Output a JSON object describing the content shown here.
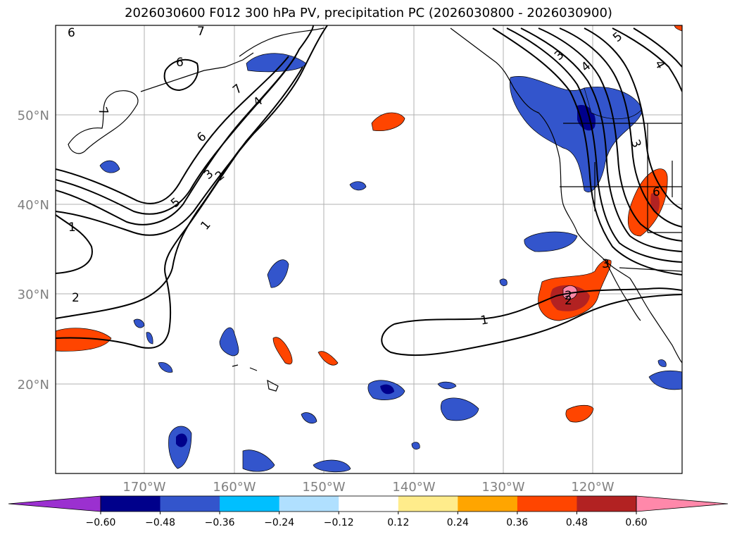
{
  "title": "2026030600 F012 300 hPa PV, precipitation PC (2026030800 - 2026030900)",
  "map": {
    "lat_labels": [
      "50°N",
      "40°N",
      "30°N",
      "20°N"
    ],
    "lon_labels": [
      "170°W",
      "160°W",
      "150°W",
      "140°W",
      "130°W",
      "120°W"
    ],
    "contour_labels": [
      "6",
      "7",
      "6",
      "7",
      "7",
      "4",
      "6",
      "3",
      "2",
      "5",
      "1",
      "1",
      "2",
      "3",
      "4",
      "5",
      "4",
      "3",
      "2",
      "1",
      "6",
      "2",
      "3"
    ]
  },
  "colorbar": {
    "ticks": [
      "−0.60",
      "−0.48",
      "−0.36",
      "−0.24",
      "−0.12",
      "0.12",
      "0.24",
      "0.36",
      "0.48",
      "0.60"
    ],
    "colors": [
      "#9b30d0",
      "#00008b",
      "#3355cc",
      "#00bfff",
      "#b0e0ff",
      "#ffffff",
      "#ffec8b",
      "#ffa500",
      "#ff4500",
      "#b22222",
      "#ff88aa"
    ]
  }
}
